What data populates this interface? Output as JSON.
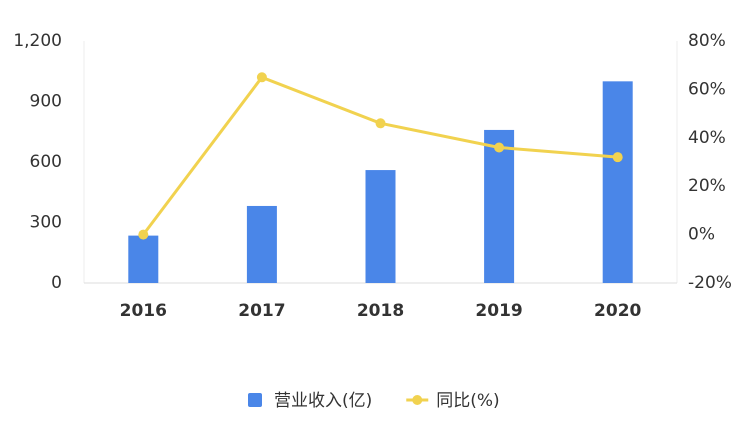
{
  "chart_data": {
    "type": "combo",
    "categories": [
      "2016",
      "2017",
      "2018",
      "2019",
      "2020"
    ],
    "series": [
      {
        "name": "营业收入(亿)",
        "type": "bar",
        "color": "#4a86e8",
        "values": [
          235,
          382,
          560,
          759,
          1000
        ]
      },
      {
        "name": "同比(%)",
        "type": "line",
        "axis": "y2",
        "color": "#f1d24f",
        "values": [
          0,
          65,
          46,
          36,
          32
        ]
      }
    ],
    "ylim": [
      0,
      1200
    ],
    "yticks": [
      0,
      300,
      600,
      900,
      {
        "value": 1200,
        "label": "1,200"
      }
    ],
    "y2lim": [
      -20,
      80
    ],
    "y2ticks": [
      {
        "value": -20,
        "label": "-20%"
      },
      {
        "value": 0,
        "label": "0%"
      },
      {
        "value": 20,
        "label": "20%"
      },
      {
        "value": 40,
        "label": "40%"
      },
      {
        "value": 60,
        "label": "60%"
      },
      {
        "value": 80,
        "label": "80%"
      }
    ],
    "grid": false,
    "legend": "bottom"
  }
}
